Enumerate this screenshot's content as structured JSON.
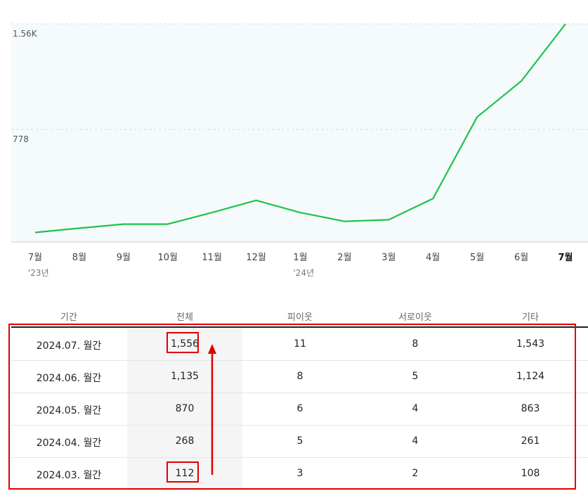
{
  "chart_data": {
    "type": "line",
    "x": [
      "7월",
      "8월",
      "9월",
      "10월",
      "11월",
      "12월",
      "1월",
      "2월",
      "3월",
      "4월",
      "5월",
      "6월",
      "7월"
    ],
    "year_labels": [
      "'23년",
      "",
      "",
      "",
      "",
      "",
      "'24년",
      "",
      "",
      "",
      "",
      "",
      ""
    ],
    "series": [
      {
        "values": [
          18,
          50,
          80,
          80,
          165,
          255,
          165,
          100,
          112,
          268,
          870,
          1135,
          1556
        ]
      }
    ],
    "ylim": [
      0,
      1556
    ],
    "yticks": [
      778,
      1556
    ],
    "ytick_labels": [
      "778",
      "1.56K"
    ],
    "grid": true,
    "line_color": "#1fc24a",
    "plot_bg": "#f5fbfd",
    "current_index": 12
  },
  "table": {
    "headers": [
      "기간",
      "전체",
      "피이웃",
      "서로이웃",
      "기타"
    ],
    "rows": [
      [
        "2024.07. 월간",
        "1,556",
        "11",
        "8",
        "1,543"
      ],
      [
        "2024.06. 월간",
        "1,135",
        "8",
        "5",
        "1,124"
      ],
      [
        "2024.05. 월간",
        "870",
        "6",
        "4",
        "863"
      ],
      [
        "2024.04. 월간",
        "268",
        "5",
        "4",
        "261"
      ],
      [
        "2024.03. 월간",
        "112",
        "3",
        "2",
        "108"
      ]
    ]
  },
  "colors": {
    "annotation": "#e00000",
    "grid": "#cfe3ea",
    "axis": "#cccccc"
  }
}
